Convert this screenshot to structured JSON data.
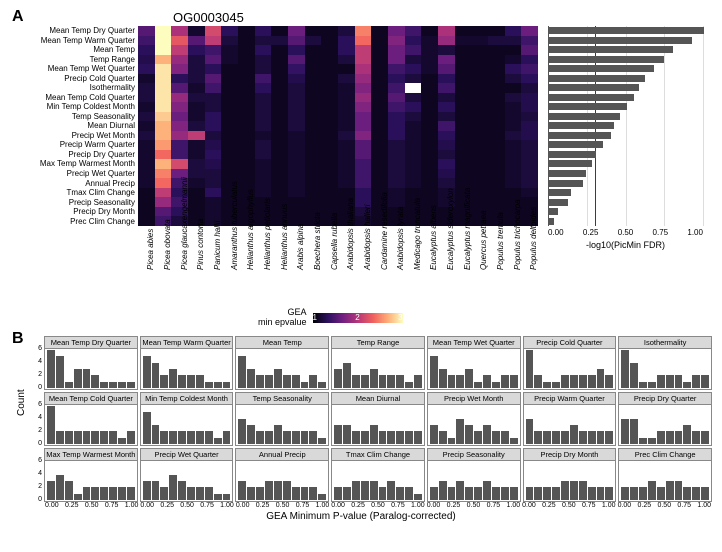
{
  "panelA": {
    "label": "A",
    "title": "OG0003045",
    "row_labels": [
      "Mean Temp Dry Quarter",
      "Mean Temp Warm Quarter",
      "Mean Temp",
      "Temp Range",
      "Mean Temp Wet Quarter",
      "Precip Cold Quarter",
      "Isothermality",
      "Mean Temp Cold Quarter",
      "Min Temp Coldest Month",
      "Temp Seasonality",
      "Mean Diurnal",
      "Precip Wet Month",
      "Precip Warm Quarter",
      "Precip Dry Quarter",
      "Max Temp Warmest Month",
      "Precip Wet Quarter",
      "Annual Precip",
      "Tmax Clim Change",
      "Precip Seasonality",
      "Precip Dry Month",
      "Prec Clim Change"
    ],
    "col_labels": [
      "Picea abies",
      "Picea obovata",
      "Picea glaucaxengelmannii",
      "Pinus contorta",
      "Panicum hallii",
      "Amaranthus tuberculatus",
      "Helianthus argophyllus",
      "Helianthus petiolaris",
      "Helianthus annuus",
      "Arabis alpina",
      "Boechera stricta",
      "Capsella rubella",
      "Arabidopsis thaliana",
      "Arabidopsis halleri",
      "Cardamine resedifolia",
      "Arabidopsis lyrata",
      "Medicago truncatula",
      "Eucalyptus albens",
      "Eucalyptus sideroxylon",
      "Eucalyptus magnificata",
      "Quercus petraea",
      "Populus tremula",
      "Populus trichocarpa",
      "Populus deltoides"
    ],
    "heatmap": {
      "type": "heatmap",
      "colorscale": {
        "label1": "GEA",
        "label2": "min epvalue",
        "ticks": [
          "1",
          "2",
          "3"
        ],
        "colors": [
          "#000004",
          "#2c115f",
          "#721f81",
          "#b63679",
          "#f1605d",
          "#feae77",
          "#fcfdbf"
        ]
      },
      "values": [
        [
          1.0,
          3.8,
          1.8,
          0.3,
          2.2,
          0.6,
          0.2,
          0.6,
          0.2,
          1.2,
          0.2,
          0.2,
          0.4,
          2.8,
          0.2,
          1.2,
          0.8,
          0.2,
          1.8,
          0.2,
          0.2,
          0.2,
          0.6,
          1.2
        ],
        [
          0.8,
          3.8,
          2.4,
          1.0,
          2.0,
          0.4,
          0.2,
          0.4,
          0.4,
          1.0,
          0.4,
          0.2,
          0.6,
          2.6,
          0.2,
          1.4,
          0.6,
          0.3,
          1.6,
          0.3,
          0.3,
          0.4,
          0.4,
          0.8
        ],
        [
          0.6,
          3.8,
          2.0,
          0.6,
          0.8,
          0.3,
          0.2,
          0.6,
          0.2,
          0.6,
          0.2,
          0.2,
          0.6,
          2.0,
          0.2,
          1.2,
          0.8,
          0.3,
          0.4,
          0.2,
          0.2,
          0.2,
          0.2,
          1.0
        ],
        [
          0.5,
          3.2,
          1.6,
          0.4,
          1.0,
          0.3,
          0.2,
          0.4,
          0.2,
          1.0,
          0.2,
          0.2,
          0.4,
          2.0,
          0.2,
          1.2,
          0.4,
          0.3,
          1.2,
          0.2,
          0.2,
          0.2,
          0.3,
          0.6
        ],
        [
          0.6,
          3.6,
          1.4,
          0.4,
          0.6,
          0.2,
          0.2,
          0.4,
          0.2,
          0.7,
          0.2,
          0.2,
          0.2,
          1.8,
          0.2,
          0.8,
          0.6,
          0.3,
          1.0,
          0.2,
          0.2,
          0.2,
          0.6,
          0.8
        ],
        [
          0.3,
          3.6,
          0.6,
          0.4,
          1.0,
          0.2,
          0.2,
          0.8,
          0.2,
          0.5,
          0.2,
          0.2,
          0.4,
          1.6,
          0.2,
          0.6,
          0.4,
          0.2,
          0.6,
          0.2,
          0.2,
          0.2,
          0.4,
          0.6
        ],
        [
          0.4,
          3.6,
          1.0,
          0.3,
          0.8,
          0.2,
          0.2,
          0.6,
          0.2,
          0.4,
          0.2,
          0.2,
          0.3,
          1.4,
          0.2,
          0.8,
          4.2,
          0.2,
          0.8,
          0.2,
          0.2,
          0.2,
          0.2,
          0.4
        ],
        [
          0.4,
          3.6,
          1.6,
          0.4,
          0.4,
          0.2,
          0.2,
          0.4,
          0.2,
          0.4,
          0.2,
          0.2,
          0.3,
          1.6,
          0.2,
          1.0,
          0.4,
          0.2,
          0.4,
          0.2,
          0.2,
          0.2,
          0.4,
          0.5
        ],
        [
          0.3,
          3.6,
          1.4,
          0.3,
          0.4,
          0.2,
          0.2,
          0.4,
          0.2,
          0.4,
          0.2,
          0.2,
          0.3,
          1.4,
          0.2,
          0.8,
          0.6,
          0.2,
          0.6,
          0.2,
          0.2,
          0.2,
          0.3,
          0.5
        ],
        [
          0.4,
          3.4,
          1.2,
          0.3,
          0.6,
          0.2,
          0.2,
          0.4,
          0.2,
          0.4,
          0.2,
          0.2,
          0.3,
          1.2,
          0.2,
          0.6,
          0.4,
          0.2,
          0.4,
          0.2,
          0.2,
          0.2,
          0.3,
          0.4
        ],
        [
          0.3,
          3.2,
          1.4,
          0.4,
          0.6,
          0.2,
          0.2,
          0.4,
          0.2,
          0.4,
          0.2,
          0.2,
          0.3,
          1.2,
          0.2,
          0.6,
          0.3,
          0.2,
          0.8,
          0.2,
          0.2,
          0.2,
          0.3,
          0.5
        ],
        [
          0.4,
          3.2,
          1.6,
          2.0,
          0.4,
          0.2,
          0.2,
          0.3,
          0.2,
          0.3,
          0.2,
          0.2,
          0.4,
          1.4,
          0.2,
          0.6,
          0.3,
          0.2,
          0.6,
          0.2,
          0.2,
          0.2,
          0.4,
          0.5
        ],
        [
          0.3,
          3.0,
          0.8,
          0.3,
          0.5,
          0.2,
          0.2,
          0.4,
          0.2,
          0.3,
          0.2,
          0.2,
          0.3,
          1.0,
          0.2,
          0.4,
          0.3,
          0.2,
          0.5,
          0.2,
          0.2,
          0.2,
          0.3,
          0.4
        ],
        [
          0.3,
          2.6,
          0.8,
          0.3,
          0.6,
          0.2,
          0.2,
          0.4,
          0.2,
          0.3,
          0.2,
          0.2,
          0.3,
          1.0,
          0.2,
          0.4,
          0.3,
          0.2,
          0.4,
          0.2,
          0.2,
          0.2,
          0.3,
          0.4
        ],
        [
          0.3,
          3.2,
          2.2,
          0.4,
          0.5,
          0.2,
          0.2,
          0.3,
          0.2,
          0.3,
          0.2,
          0.2,
          0.3,
          0.8,
          0.2,
          0.4,
          0.3,
          0.2,
          0.6,
          0.2,
          0.2,
          0.2,
          0.3,
          0.4
        ],
        [
          0.3,
          2.8,
          1.2,
          0.4,
          0.4,
          0.2,
          0.2,
          0.3,
          0.2,
          0.3,
          0.2,
          0.2,
          0.3,
          0.8,
          0.2,
          0.4,
          0.3,
          0.2,
          0.5,
          0.2,
          0.2,
          0.2,
          0.3,
          0.4
        ],
        [
          0.3,
          2.6,
          0.8,
          0.3,
          0.4,
          0.2,
          0.2,
          0.3,
          0.2,
          0.3,
          0.2,
          0.2,
          0.3,
          0.8,
          0.2,
          0.4,
          0.3,
          0.2,
          0.4,
          0.2,
          0.2,
          0.2,
          0.3,
          0.4
        ],
        [
          0.2,
          2.0,
          0.6,
          0.2,
          0.6,
          0.2,
          0.2,
          0.3,
          0.2,
          0.3,
          0.2,
          0.2,
          0.2,
          0.6,
          0.2,
          0.3,
          0.2,
          0.2,
          0.3,
          0.2,
          0.2,
          0.2,
          0.2,
          0.3
        ],
        [
          0.2,
          1.6,
          0.8,
          0.2,
          0.3,
          0.2,
          0.2,
          0.2,
          0.2,
          0.2,
          0.2,
          0.2,
          0.2,
          0.6,
          0.2,
          0.3,
          0.2,
          0.2,
          0.3,
          0.2,
          0.2,
          0.2,
          0.2,
          0.2
        ],
        [
          0.2,
          1.0,
          0.6,
          0.2,
          0.3,
          0.2,
          0.2,
          0.2,
          0.2,
          0.2,
          0.2,
          0.2,
          0.2,
          0.4,
          0.2,
          0.2,
          0.2,
          0.2,
          0.2,
          0.2,
          0.2,
          0.2,
          0.2,
          0.2
        ],
        [
          0.2,
          0.8,
          0.4,
          0.2,
          0.3,
          0.2,
          0.2,
          0.2,
          0.2,
          0.2,
          0.2,
          0.2,
          0.2,
          0.3,
          0.2,
          0.2,
          0.2,
          0.2,
          0.2,
          0.2,
          0.2,
          0.2,
          0.2,
          0.2
        ]
      ]
    },
    "barplot": {
      "type": "bar_horizontal",
      "values": [
        1.0,
        0.92,
        0.8,
        0.74,
        0.68,
        0.62,
        0.58,
        0.55,
        0.5,
        0.46,
        0.42,
        0.4,
        0.35,
        0.3,
        0.28,
        0.24,
        0.22,
        0.14,
        0.12,
        0.06,
        0.03
      ],
      "xlim": [
        0,
        1.0
      ],
      "xticks": [
        "0.00",
        "0.25",
        "0.50",
        "0.75",
        "1.00"
      ],
      "xlabel": "-log10(PicMin FDR)",
      "bar_color": "#555555",
      "ref_line": 0.3,
      "ref_color": "#cc0000",
      "grid_color": "#dddddd"
    }
  },
  "panelB": {
    "label": "B",
    "ylab": "Count",
    "xlab": "GEA Minimum P-value (Paralog-corrected)",
    "ymax": 6,
    "yticks": [
      "0",
      "2",
      "4",
      "6"
    ],
    "xticks": [
      "0.00",
      "0.25",
      "0.50",
      "0.75",
      "1.00"
    ],
    "facets": [
      {
        "title": "Mean Temp Dry Quarter",
        "bins": [
          6,
          5,
          1,
          3,
          3,
          2,
          1,
          1,
          1,
          1
        ]
      },
      {
        "title": "Mean Temp Warm Quarter",
        "bins": [
          5,
          4,
          2,
          3,
          2,
          2,
          2,
          1,
          1,
          1
        ]
      },
      {
        "title": "Mean Temp",
        "bins": [
          5,
          3,
          2,
          2,
          3,
          2,
          2,
          1,
          2,
          1
        ]
      },
      {
        "title": "Temp Range",
        "bins": [
          3,
          4,
          2,
          2,
          3,
          2,
          2,
          2,
          1,
          2
        ]
      },
      {
        "title": "Mean Temp Wet Quarter",
        "bins": [
          5,
          3,
          2,
          2,
          3,
          1,
          2,
          1,
          2,
          2
        ]
      },
      {
        "title": "Precip Cold Quarter",
        "bins": [
          6,
          2,
          1,
          1,
          2,
          2,
          2,
          2,
          3,
          2
        ]
      },
      {
        "title": "Isothermality",
        "bins": [
          6,
          4,
          1,
          1,
          2,
          2,
          2,
          1,
          2,
          2
        ]
      },
      {
        "title": "Mean Temp Cold Quarter",
        "bins": [
          6,
          2,
          2,
          2,
          2,
          2,
          2,
          2,
          1,
          2
        ]
      },
      {
        "title": "Min Temp Coldest Month",
        "bins": [
          5,
          3,
          2,
          2,
          2,
          2,
          2,
          2,
          1,
          2
        ]
      },
      {
        "title": "Temp Seasonality",
        "bins": [
          4,
          3,
          2,
          2,
          3,
          2,
          2,
          2,
          2,
          1
        ]
      },
      {
        "title": "Mean Diurnal",
        "bins": [
          3,
          3,
          2,
          2,
          3,
          2,
          2,
          2,
          2,
          2
        ]
      },
      {
        "title": "Precip Wet Month",
        "bins": [
          3,
          2,
          1,
          4,
          3,
          2,
          3,
          2,
          2,
          1
        ]
      },
      {
        "title": "Precip Warm Quarter",
        "bins": [
          4,
          2,
          2,
          2,
          2,
          3,
          2,
          2,
          2,
          2
        ]
      },
      {
        "title": "Precip Dry Quarter",
        "bins": [
          4,
          4,
          1,
          1,
          2,
          2,
          2,
          3,
          2,
          2
        ]
      },
      {
        "title": "Max Temp Warmest Month",
        "bins": [
          3,
          4,
          3,
          1,
          2,
          2,
          2,
          2,
          2,
          2
        ]
      },
      {
        "title": "Precip Wet Quarter",
        "bins": [
          3,
          3,
          2,
          4,
          3,
          2,
          2,
          2,
          1,
          1
        ]
      },
      {
        "title": "Annual Precip",
        "bins": [
          3,
          2,
          2,
          3,
          3,
          3,
          2,
          2,
          2,
          1
        ]
      },
      {
        "title": "Tmax Clim Change",
        "bins": [
          2,
          2,
          3,
          3,
          3,
          2,
          3,
          2,
          2,
          1
        ]
      },
      {
        "title": "Precip Seasonality",
        "bins": [
          2,
          3,
          2,
          3,
          2,
          2,
          3,
          2,
          2,
          2
        ]
      },
      {
        "title": "Precip Dry Month",
        "bins": [
          2,
          2,
          2,
          2,
          3,
          3,
          3,
          2,
          2,
          2
        ]
      },
      {
        "title": "Prec Clim Change",
        "bins": [
          2,
          2,
          2,
          3,
          2,
          3,
          3,
          2,
          2,
          2
        ]
      }
    ]
  }
}
